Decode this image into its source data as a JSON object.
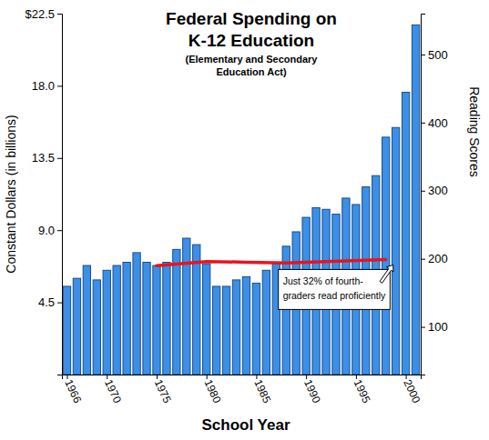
{
  "chart_data": {
    "type": "bar",
    "title": [
      "Federal Spending on",
      "K-12 Education"
    ],
    "subtitle": [
      "(Elementary and Secondary",
      "Education Act)"
    ],
    "xlabel": "School Year",
    "ylabel": "Constant Dollars (in billions)",
    "y2label": "Reading Scores",
    "x": [
      1966,
      1967,
      1968,
      1969,
      1970,
      1971,
      1972,
      1973,
      1974,
      1975,
      1976,
      1977,
      1978,
      1979,
      1980,
      1981,
      1982,
      1983,
      1984,
      1985,
      1986,
      1987,
      1988,
      1989,
      1990,
      1991,
      1992,
      1993,
      1994,
      1995,
      1996,
      1997,
      1998,
      1999,
      2000,
      2001
    ],
    "xlim": [
      1965.5,
      2001.5
    ],
    "xticks": [
      1966,
      1970,
      1975,
      1980,
      1985,
      1990,
      1995,
      2000
    ],
    "ylim": [
      0,
      22.5
    ],
    "yticks": [
      4.5,
      {
        "value": 9,
        "label": "9.0"
      },
      13.5,
      {
        "value": 18,
        "label": "18.0"
      },
      {
        "value": 22.5,
        "label": "$22.5"
      }
    ],
    "y2lim": [
      30,
      560
    ],
    "y2ticks": [
      100,
      200,
      300,
      400,
      500
    ],
    "grid": false,
    "series": [
      {
        "type": "bar",
        "color": "#3b8fe6",
        "values": [
          5.5,
          6.0,
          6.8,
          5.9,
          6.5,
          6.8,
          7.0,
          7.6,
          7.0,
          6.8,
          7.0,
          7.8,
          8.5,
          8.1,
          6.9,
          5.5,
          5.5,
          5.9,
          6.1,
          5.7,
          6.5,
          6.9,
          8.0,
          8.9,
          9.8,
          10.4,
          10.3,
          10.0,
          11.0,
          10.6,
          11.7,
          12.4,
          14.8,
          15.4,
          17.6,
          21.8
        ]
      },
      {
        "type": "line",
        "axis": "y2",
        "color": "#e8141c",
        "x": [
          1975,
          1980,
          1984,
          1988,
          1990,
          1992,
          1994,
          1998
        ],
        "values": [
          190,
          196,
          195,
          194,
          195,
          196,
          197,
          199
        ]
      }
    ],
    "annotation": [
      "Just 32% of fourth-",
      "graders read proficiently"
    ]
  }
}
